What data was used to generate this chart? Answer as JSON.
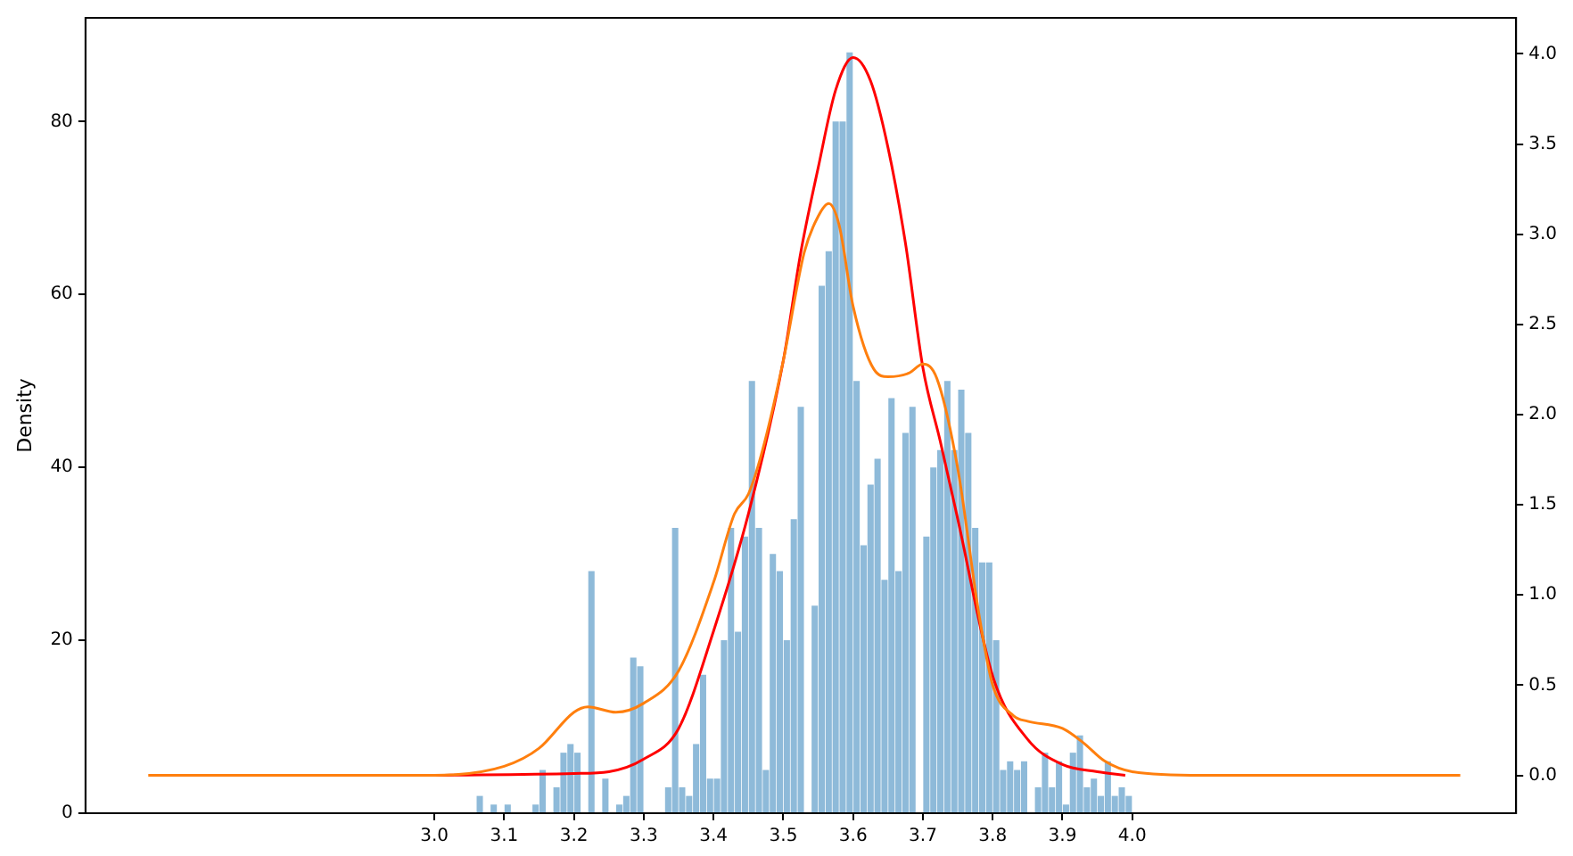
{
  "chart_data": {
    "type": "histogram",
    "ylabel": "Density",
    "grid": false,
    "legend": false,
    "xlim": [
      2.5,
      4.55
    ],
    "xticks": [
      {
        "value": 3,
        "label": "3.0"
      },
      3.1,
      3.2,
      3.3,
      3.4,
      3.5,
      3.6,
      3.7,
      3.8,
      3.9,
      {
        "value": 4,
        "label": "4.0"
      }
    ],
    "ylim": [
      0,
      92
    ],
    "yticks": [
      0,
      20,
      40,
      60,
      80
    ],
    "y2lim": [
      -0.21,
      4.2
    ],
    "y2ticks": [
      {
        "value": 0,
        "label": "0.0"
      },
      0.5,
      {
        "value": 1,
        "label": "1.0"
      },
      1.5,
      {
        "value": 2,
        "label": "2.0"
      },
      2.5,
      {
        "value": 3,
        "label": "3.0"
      },
      3.5,
      {
        "value": 4,
        "label": "4.0"
      }
    ],
    "series": [
      {
        "type": "histogram",
        "color": "#8ebad9",
        "bins": [
          3.06,
          3.07,
          3.08,
          3.09,
          3.1,
          3.11,
          3.12,
          3.13,
          3.14,
          3.15,
          3.16,
          3.17,
          3.18,
          3.19,
          3.2,
          3.21,
          3.22,
          3.23,
          3.24,
          3.25,
          3.26,
          3.27,
          3.28,
          3.29,
          3.3,
          3.31,
          3.32,
          3.33,
          3.34,
          3.35,
          3.36,
          3.37,
          3.38,
          3.39,
          3.4,
          3.41,
          3.42,
          3.43,
          3.44,
          3.45,
          3.46,
          3.47,
          3.48,
          3.49,
          3.5,
          3.51,
          3.52,
          3.53,
          3.54,
          3.55,
          3.56,
          3.57,
          3.58,
          3.59,
          3.6,
          3.61,
          3.62,
          3.63,
          3.64,
          3.65,
          3.66,
          3.67,
          3.68,
          3.69,
          3.7,
          3.71,
          3.72,
          3.73,
          3.74,
          3.75,
          3.76,
          3.77,
          3.78,
          3.79,
          3.8,
          3.81,
          3.82,
          3.83,
          3.84,
          3.85,
          3.86,
          3.87,
          3.88,
          3.89,
          3.9,
          3.91,
          3.92,
          3.93,
          3.94,
          3.95,
          3.96,
          3.97,
          3.98,
          3.99,
          4.0
        ],
        "values": [
          2,
          0,
          1,
          0,
          1,
          0,
          0,
          0,
          1,
          5,
          0,
          3,
          7,
          8,
          7,
          0,
          28,
          0,
          4,
          0,
          1,
          2,
          18,
          17,
          0,
          0,
          0,
          3,
          33,
          3,
          2,
          8,
          16,
          4,
          4,
          20,
          33,
          21,
          32,
          50,
          33,
          5,
          30,
          28,
          20,
          34,
          47,
          0,
          24,
          61,
          65,
          80,
          80,
          88,
          50,
          31,
          38,
          41,
          27,
          48,
          28,
          44,
          47,
          0,
          32,
          40,
          42,
          50,
          42,
          49,
          44,
          33,
          29,
          29,
          20,
          5,
          6,
          5,
          6,
          0,
          3,
          7,
          3,
          6,
          1,
          7,
          9,
          3,
          4,
          2,
          6,
          2,
          3,
          2
        ]
      },
      {
        "type": "line",
        "axis": "y2",
        "color": "#ff7f0e",
        "x": [
          2.59,
          3.0,
          3.1,
          3.15,
          3.2,
          3.22,
          3.26,
          3.3,
          3.35,
          3.4,
          3.43,
          3.45,
          3.47,
          3.5,
          3.53,
          3.55,
          3.565,
          3.58,
          3.6,
          3.63,
          3.65,
          3.68,
          3.7,
          3.72,
          3.75,
          3.78,
          3.8,
          3.83,
          3.85,
          3.9,
          3.93,
          3.96,
          4.0,
          4.1,
          4.47
        ],
        "values": [
          0,
          0,
          0.05,
          0.15,
          0.35,
          0.38,
          0.35,
          0.4,
          0.58,
          1.07,
          1.45,
          1.56,
          1.8,
          2.3,
          2.9,
          3.1,
          3.17,
          3.05,
          2.6,
          2.25,
          2.21,
          2.23,
          2.28,
          2.2,
          1.7,
          0.9,
          0.5,
          0.33,
          0.3,
          0.26,
          0.18,
          0.08,
          0.02,
          0,
          0
        ]
      },
      {
        "type": "line",
        "axis": "y2",
        "color": "#ff0000",
        "x": [
          3.0,
          3.2,
          3.25,
          3.3,
          3.35,
          3.4,
          3.45,
          3.5,
          3.525,
          3.55,
          3.575,
          3.6,
          3.625,
          3.65,
          3.675,
          3.7,
          3.725,
          3.75,
          3.8,
          3.85,
          3.9,
          3.95,
          3.99
        ],
        "values": [
          0,
          0.01,
          0.02,
          0.09,
          0.26,
          0.8,
          1.45,
          2.3,
          2.9,
          3.37,
          3.8,
          3.98,
          3.85,
          3.48,
          2.95,
          2.26,
          1.85,
          1.42,
          0.55,
          0.2,
          0.06,
          0.02,
          0
        ]
      }
    ]
  }
}
